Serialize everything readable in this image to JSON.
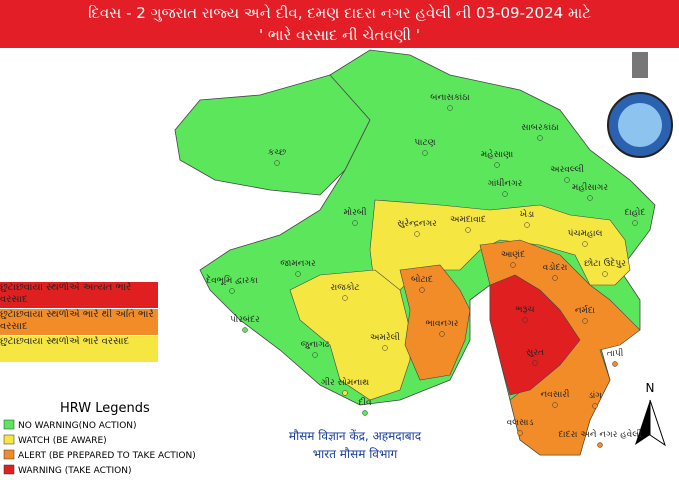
{
  "header": {
    "line1": "દિવસ - 2 ગુજરાત રાજ્ય અને દીવ, દમણ દાદરા નગર હવેલી ની  03-09-2024 માટે",
    "line2": "' ભારે વરસાદ ની ચેતવણી '"
  },
  "districts": [
    {
      "name": "કચ્છ",
      "color": "#5ce65c"
    },
    {
      "name": "બનાસકાંઠા",
      "color": "#5ce65c"
    },
    {
      "name": "પાટણ",
      "color": "#5ce65c"
    },
    {
      "name": "મહેસાણા",
      "color": "#5ce65c"
    },
    {
      "name": "સાબરકાંઠા",
      "color": "#5ce65c"
    },
    {
      "name": "અરવલ્લી",
      "color": "#5ce65c"
    },
    {
      "name": "ગાંધીનગર",
      "color": "#5ce65c"
    },
    {
      "name": "મહીસાગર",
      "color": "#5ce65c"
    },
    {
      "name": "દાહોદ",
      "color": "#5ce65c"
    },
    {
      "name": "મોરબી",
      "color": "#5ce65c"
    },
    {
      "name": "સુરેન્દ્રનગર",
      "color": "#f5e642"
    },
    {
      "name": "અમદાવાદ",
      "color": "#f5e642"
    },
    {
      "name": "ખેડા",
      "color": "#f5e642"
    },
    {
      "name": "પંચમહાલ",
      "color": "#f5e642"
    },
    {
      "name": "જામનગર",
      "color": "#5ce65c"
    },
    {
      "name": "આણંદ",
      "color": "#f28c28"
    },
    {
      "name": "વડોદરા",
      "color": "#f28c28"
    },
    {
      "name": "છોટા ઉદેપુર",
      "color": "#f5e642"
    },
    {
      "name": "દેવભૂમિ દ્વારકા",
      "color": "#5ce65c"
    },
    {
      "name": "રાજકોટ",
      "color": "#f5e642"
    },
    {
      "name": "બોટાદ",
      "color": "#f28c28"
    },
    {
      "name": "પોરબંદર",
      "color": "#5ce65c"
    },
    {
      "name": "ભરૂચ",
      "color": "#e02020"
    },
    {
      "name": "નર્મદા",
      "color": "#f28c28"
    },
    {
      "name": "ભાવનગર",
      "color": "#f28c28"
    },
    {
      "name": "અમરેલી",
      "color": "#f5e642"
    },
    {
      "name": "જુનાગઢ",
      "color": "#5ce65c"
    },
    {
      "name": "સુરત",
      "color": "#e02020"
    },
    {
      "name": "તાપી",
      "color": "#f28c28"
    },
    {
      "name": "ગીર સોમનાથ",
      "color": "#f5e642"
    },
    {
      "name": "નવસારી",
      "color": "#f28c28"
    },
    {
      "name": "ડાંગ",
      "color": "#f28c28"
    },
    {
      "name": "દીવ",
      "color": "#5ce65c"
    },
    {
      "name": "વલસાડ",
      "color": "#f28c28"
    },
    {
      "name": "દાદરા અને નગર હવેલી",
      "color": "#f28c28"
    }
  ],
  "warning_legend": [
    {
      "text": "છુટાછવાયા સ્થળોએ અત્યંત ભારે વરસાદ",
      "color": "#e02020"
    },
    {
      "text": "છુટાછવાયા સ્થળોએ ભારે થી અતિ ભારે વરસાદ",
      "color": "#f28c28"
    },
    {
      "text": "છુટાછવાયા સ્થળોએ ભારે વરસાદ",
      "color": "#f5e642"
    }
  ],
  "hrw_legend": {
    "title": "HRW Legends",
    "items": [
      {
        "text": "NO WARNING(NO ACTION)",
        "color": "#5ce65c"
      },
      {
        "text": "WATCH (BE AWARE)",
        "color": "#f5e642"
      },
      {
        "text": "ALERT (BE PREPARED TO TAKE ACTION)",
        "color": "#f28c28"
      },
      {
        "text": "WARNING (TAKE ACTION)",
        "color": "#e02020"
      }
    ]
  },
  "footer": {
    "line1": "मौसम विज्ञान केंद्र, अहमदाबाद",
    "line2": "भारत मौसम विभाग"
  },
  "compass": "N"
}
